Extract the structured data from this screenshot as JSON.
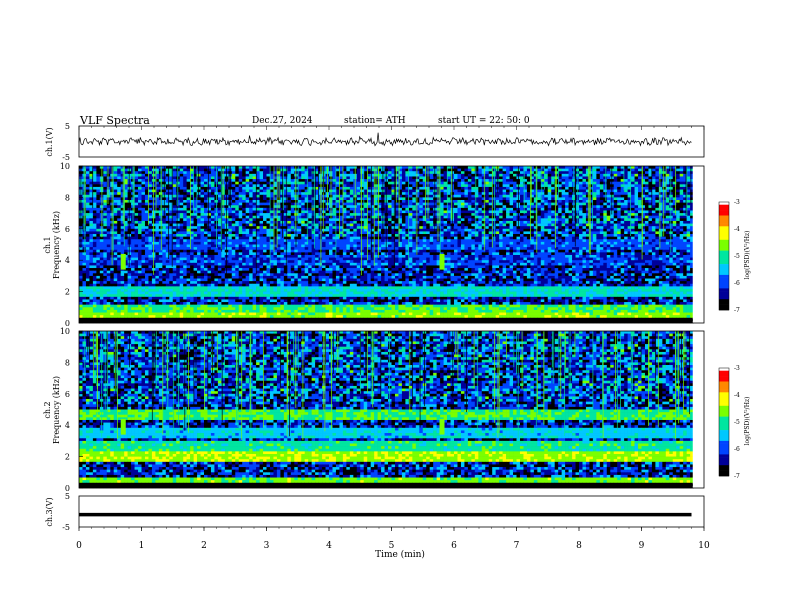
{
  "header": {
    "title": "VLF  Spectra",
    "date": "Dec.27, 2024",
    "station": "station= ATH",
    "start": "start  UT  =    22: 50: 0"
  },
  "colors": {
    "spectrum": [
      "#000000",
      "#000099",
      "#0044ff",
      "#00c8ff",
      "#00e6a0",
      "#7aff00",
      "#ffff00",
      "#ff8800",
      "#ff0000",
      "#ffffff"
    ]
  },
  "chart_data": [
    {
      "type": "line",
      "id": "ch1-waveform",
      "ylabel": "ch.1(V)",
      "ylim": [
        -5,
        5
      ],
      "yticks": [
        "5",
        "-5"
      ],
      "x": [
        0,
        1,
        2,
        3,
        4,
        5,
        6,
        7,
        8,
        9,
        9.8
      ],
      "values": [
        0,
        0,
        0,
        0,
        0,
        0,
        0,
        0,
        0,
        0,
        0
      ],
      "note_values": "noisy trace around 0 V, amplitude ~±1 V, spikes near 1.5, 6.4, 9.2 min"
    },
    {
      "type": "heatmap",
      "id": "ch1-spectrogram",
      "ylabel_top": "ch.1",
      "ylabel": "Frequency  (kHz)",
      "ylim": [
        0,
        10
      ],
      "yticks": [
        "0",
        "2",
        "4",
        "6",
        "8",
        "10"
      ],
      "xlim": [
        0,
        10
      ],
      "colorbar": {
        "label": "log(PSD)(V²/Hz)",
        "ticks": [
          "-3",
          "-4",
          "-5",
          "-6",
          "-7"
        ],
        "range": [
          -7,
          -3
        ]
      },
      "bands_khz": [
        {
          "f": 0.4,
          "level": -4.5
        },
        {
          "f": 0.9,
          "level": -4.8
        },
        {
          "f": 2.0,
          "level": -5.2
        },
        {
          "f": 4.0,
          "level": -6.2
        },
        {
          "f": 5.0,
          "level": -6.0
        }
      ],
      "transients_min": [
        0.7,
        5.8
      ]
    },
    {
      "type": "heatmap",
      "id": "ch2-spectrogram",
      "ylabel_top": "ch.2",
      "ylabel": "Frequency  (kHz)",
      "ylim": [
        0,
        10
      ],
      "yticks": [
        "0",
        "2",
        "4",
        "6",
        "8",
        "10"
      ],
      "xlim": [
        0,
        10
      ],
      "colorbar": {
        "label": "log(PSD)(V²/Hz)",
        "ticks": [
          "-3",
          "-4",
          "-5",
          "-6",
          "-7"
        ],
        "range": [
          -7,
          -3
        ]
      },
      "bands_khz": [
        {
          "f": 0.3,
          "level": -4.6
        },
        {
          "f": 2.0,
          "level": -4.4
        },
        {
          "f": 2.7,
          "level": -5.0
        },
        {
          "f": 3.5,
          "level": -5.4
        },
        {
          "f": 4.7,
          "level": -4.8
        }
      ],
      "transients_min": [
        0.7,
        5.8
      ]
    },
    {
      "type": "line",
      "id": "ch3-waveform",
      "ylabel": "ch.3(V)",
      "ylim": [
        -5,
        5
      ],
      "yticks": [
        "5",
        "-5"
      ],
      "x": [
        0,
        9.8
      ],
      "values": [
        -1,
        -1
      ]
    }
  ],
  "x_axis": {
    "label": "Time  (min)",
    "ticks": [
      "0",
      "1",
      "2",
      "3",
      "4",
      "5",
      "6",
      "7",
      "8",
      "9",
      "10"
    ],
    "range": [
      0,
      10
    ]
  }
}
